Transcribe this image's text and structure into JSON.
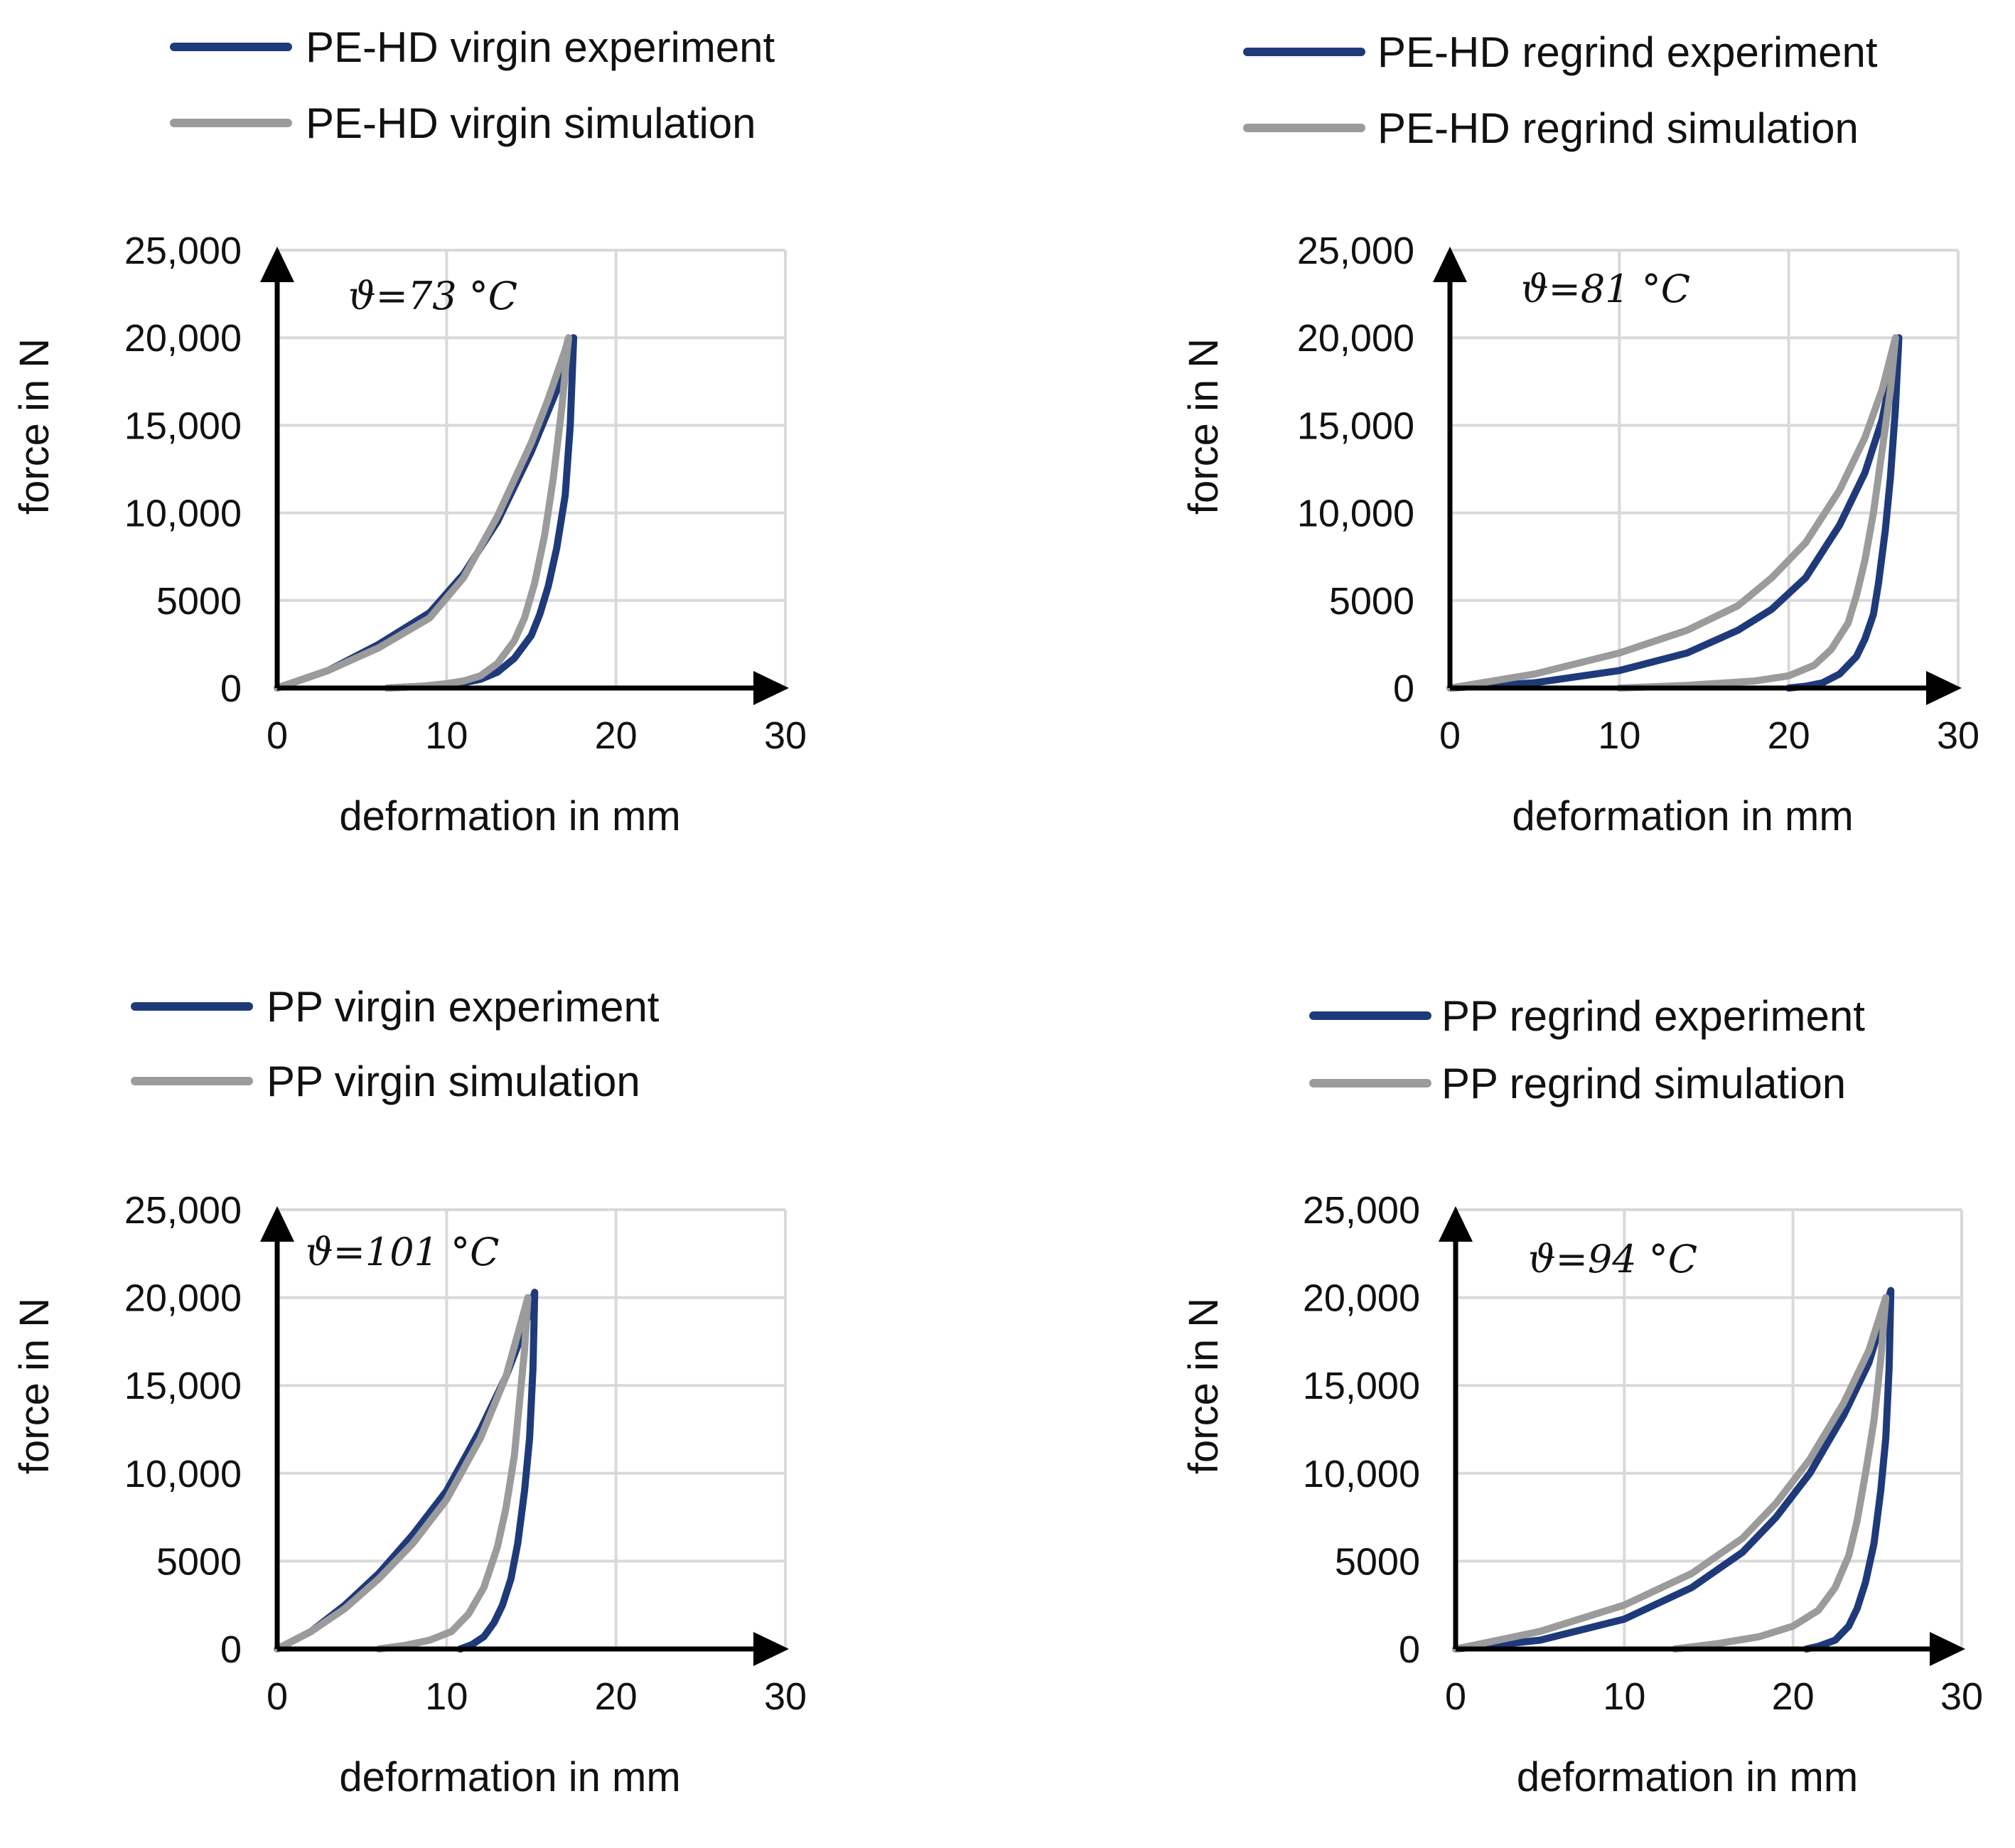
{
  "colors": {
    "experiment": "#1f3a7a",
    "simulation": "#9b9b9b",
    "grid": "#d9d9d9",
    "axis": "#000000"
  },
  "chart_data": [
    {
      "id": "pehd-virgin",
      "type": "line",
      "temperature": "ϑ=73 °C",
      "xlabel": "deformation in mm",
      "ylabel": "force in N",
      "xlim": [
        0,
        30
      ],
      "ylim": [
        0,
        25000
      ],
      "xticks": [
        "0",
        "10",
        "20",
        "30"
      ],
      "yticks": [
        "0",
        "5000",
        "10,000",
        "15,000",
        "20,000",
        "25,000"
      ],
      "legend": [
        "PE-HD virgin experiment",
        "PE-HD virgin simulation"
      ],
      "series": [
        {
          "name": "PE-HD virgin experiment",
          "color_key": "experiment",
          "x": [
            0,
            3,
            6,
            9,
            11,
            13,
            15,
            16.5,
            17.5,
            17.3,
            17,
            16.5,
            16,
            15.5,
            15,
            14,
            13,
            12,
            11,
            10,
            9,
            7.5,
            6.5
          ],
          "y": [
            0,
            1000,
            2500,
            4300,
            6500,
            9500,
            13500,
            17000,
            20000,
            15000,
            11000,
            8000,
            5800,
            4200,
            3000,
            1700,
            900,
            500,
            300,
            200,
            120,
            50,
            0
          ]
        },
        {
          "name": "PE-HD virgin simulation",
          "color_key": "simulation",
          "x": [
            0,
            3,
            6,
            9,
            11,
            13,
            15,
            16,
            17,
            17.2,
            16.8,
            16.3,
            15.8,
            15.2,
            14.6,
            14,
            13,
            12,
            11,
            10,
            8.5,
            6.5
          ],
          "y": [
            0,
            1000,
            2300,
            4000,
            6300,
            9800,
            14000,
            16500,
            19300,
            20000,
            16000,
            12000,
            8800,
            6000,
            4000,
            2700,
            1400,
            700,
            400,
            250,
            100,
            0
          ]
        }
      ]
    },
    {
      "id": "pehd-regrind",
      "type": "line",
      "temperature": "ϑ=81 °C",
      "xlabel": "deformation in mm",
      "ylabel": "force in N",
      "xlim": [
        0,
        30
      ],
      "ylim": [
        0,
        25000
      ],
      "xticks": [
        "0",
        "10",
        "20",
        "30"
      ],
      "yticks": [
        "0",
        "5000",
        "10,000",
        "15,000",
        "20,000",
        "25,000"
      ],
      "legend": [
        "PE-HD regrind experiment",
        "PE-HD regrind simulation"
      ],
      "series": [
        {
          "name": "PE-HD regrind experiment",
          "color_key": "experiment",
          "x": [
            0,
            5,
            10,
            14,
            17,
            19,
            21,
            23,
            24.5,
            25.5,
            26.5,
            26.3,
            26,
            25.7,
            25.3,
            25,
            24.5,
            24,
            23,
            22,
            21,
            20
          ],
          "y": [
            0,
            300,
            1000,
            2000,
            3300,
            4500,
            6300,
            9300,
            12300,
            15300,
            20000,
            16000,
            12000,
            9000,
            6000,
            4200,
            2800,
            1800,
            800,
            300,
            100,
            0
          ]
        },
        {
          "name": "PE-HD regrind simulation",
          "color_key": "simulation",
          "x": [
            0,
            5,
            10,
            14,
            17,
            19,
            21,
            23,
            24.5,
            25.5,
            26.3,
            26,
            25.5,
            25,
            24.5,
            24,
            23.5,
            22.5,
            21.5,
            20,
            18,
            14,
            10
          ],
          "y": [
            0,
            800,
            2000,
            3300,
            4700,
            6300,
            8300,
            11300,
            14300,
            17000,
            20000,
            17000,
            13500,
            10000,
            7300,
            5300,
            3700,
            2200,
            1300,
            700,
            400,
            150,
            0
          ]
        }
      ]
    },
    {
      "id": "pp-virgin",
      "type": "line",
      "temperature": "ϑ=101 °C",
      "xlabel": "deformation in mm",
      "ylabel": "force in N",
      "xlim": [
        0,
        30
      ],
      "ylim": [
        0,
        25000
      ],
      "xticks": [
        "0",
        "10",
        "20",
        "30"
      ],
      "yticks": [
        "0",
        "5000",
        "10,000",
        "15,000",
        "20,000",
        "25,000"
      ],
      "legend": [
        "PP virgin experiment",
        "PP virgin simulation"
      ],
      "series": [
        {
          "name": "PP virgin experiment",
          "color_key": "experiment",
          "x": [
            0,
            2,
            4,
            6,
            8,
            10,
            12,
            13.5,
            14.5,
            15.2,
            15.1,
            14.9,
            14.6,
            14.2,
            13.8,
            13.3,
            12.8,
            12.2,
            11.5,
            10.8
          ],
          "y": [
            0,
            1000,
            2500,
            4300,
            6500,
            9000,
            12500,
            15500,
            18000,
            20300,
            16000,
            12000,
            9000,
            6000,
            4000,
            2500,
            1500,
            700,
            250,
            0
          ]
        },
        {
          "name": "PP virgin simulation",
          "color_key": "simulation",
          "x": [
            0,
            2,
            4,
            6,
            8,
            10,
            12,
            13.5,
            14.8,
            14.6,
            14.3,
            14,
            13.5,
            13,
            12.2,
            11.3,
            10.3,
            9,
            7.5,
            6
          ],
          "y": [
            0,
            1000,
            2300,
            4000,
            6000,
            8500,
            12000,
            15500,
            20000,
            17000,
            14000,
            11000,
            8000,
            5800,
            3500,
            2000,
            1000,
            500,
            200,
            0
          ]
        }
      ]
    },
    {
      "id": "pp-regrind",
      "type": "line",
      "temperature": "ϑ=94 °C",
      "xlabel": "deformation in mm",
      "ylabel": "force in N",
      "xlim": [
        0,
        30
      ],
      "ylim": [
        0,
        25000
      ],
      "xticks": [
        "0",
        "10",
        "20",
        "30"
      ],
      "yticks": [
        "0",
        "5000",
        "10,000",
        "15,000",
        "20,000",
        "25,000"
      ],
      "legend": [
        "PP regrind experiment",
        "PP regrind simulation"
      ],
      "series": [
        {
          "name": "PP regrind experiment",
          "color_key": "experiment",
          "x": [
            0,
            5,
            10,
            14,
            17,
            19,
            21,
            23,
            24.5,
            25.8,
            25.7,
            25.5,
            25.2,
            24.8,
            24.3,
            23.8,
            23.3,
            22.5,
            21.5,
            20.8
          ],
          "y": [
            0,
            500,
            1700,
            3500,
            5500,
            7500,
            10000,
            13300,
            16300,
            20400,
            16000,
            12000,
            9000,
            6000,
            3800,
            2300,
            1300,
            500,
            150,
            0
          ]
        },
        {
          "name": "PP regrind simulation",
          "color_key": "simulation",
          "x": [
            0,
            5,
            10,
            14,
            17,
            19,
            21,
            23,
            24.5,
            25.5,
            25.2,
            24.8,
            24.3,
            23.8,
            23.3,
            22.5,
            21.5,
            20,
            18,
            15.5,
            13
          ],
          "y": [
            0,
            1000,
            2500,
            4300,
            6300,
            8300,
            10800,
            14000,
            17000,
            20000,
            16500,
            13000,
            10000,
            7300,
            5300,
            3500,
            2200,
            1300,
            700,
            300,
            0
          ]
        }
      ]
    }
  ]
}
